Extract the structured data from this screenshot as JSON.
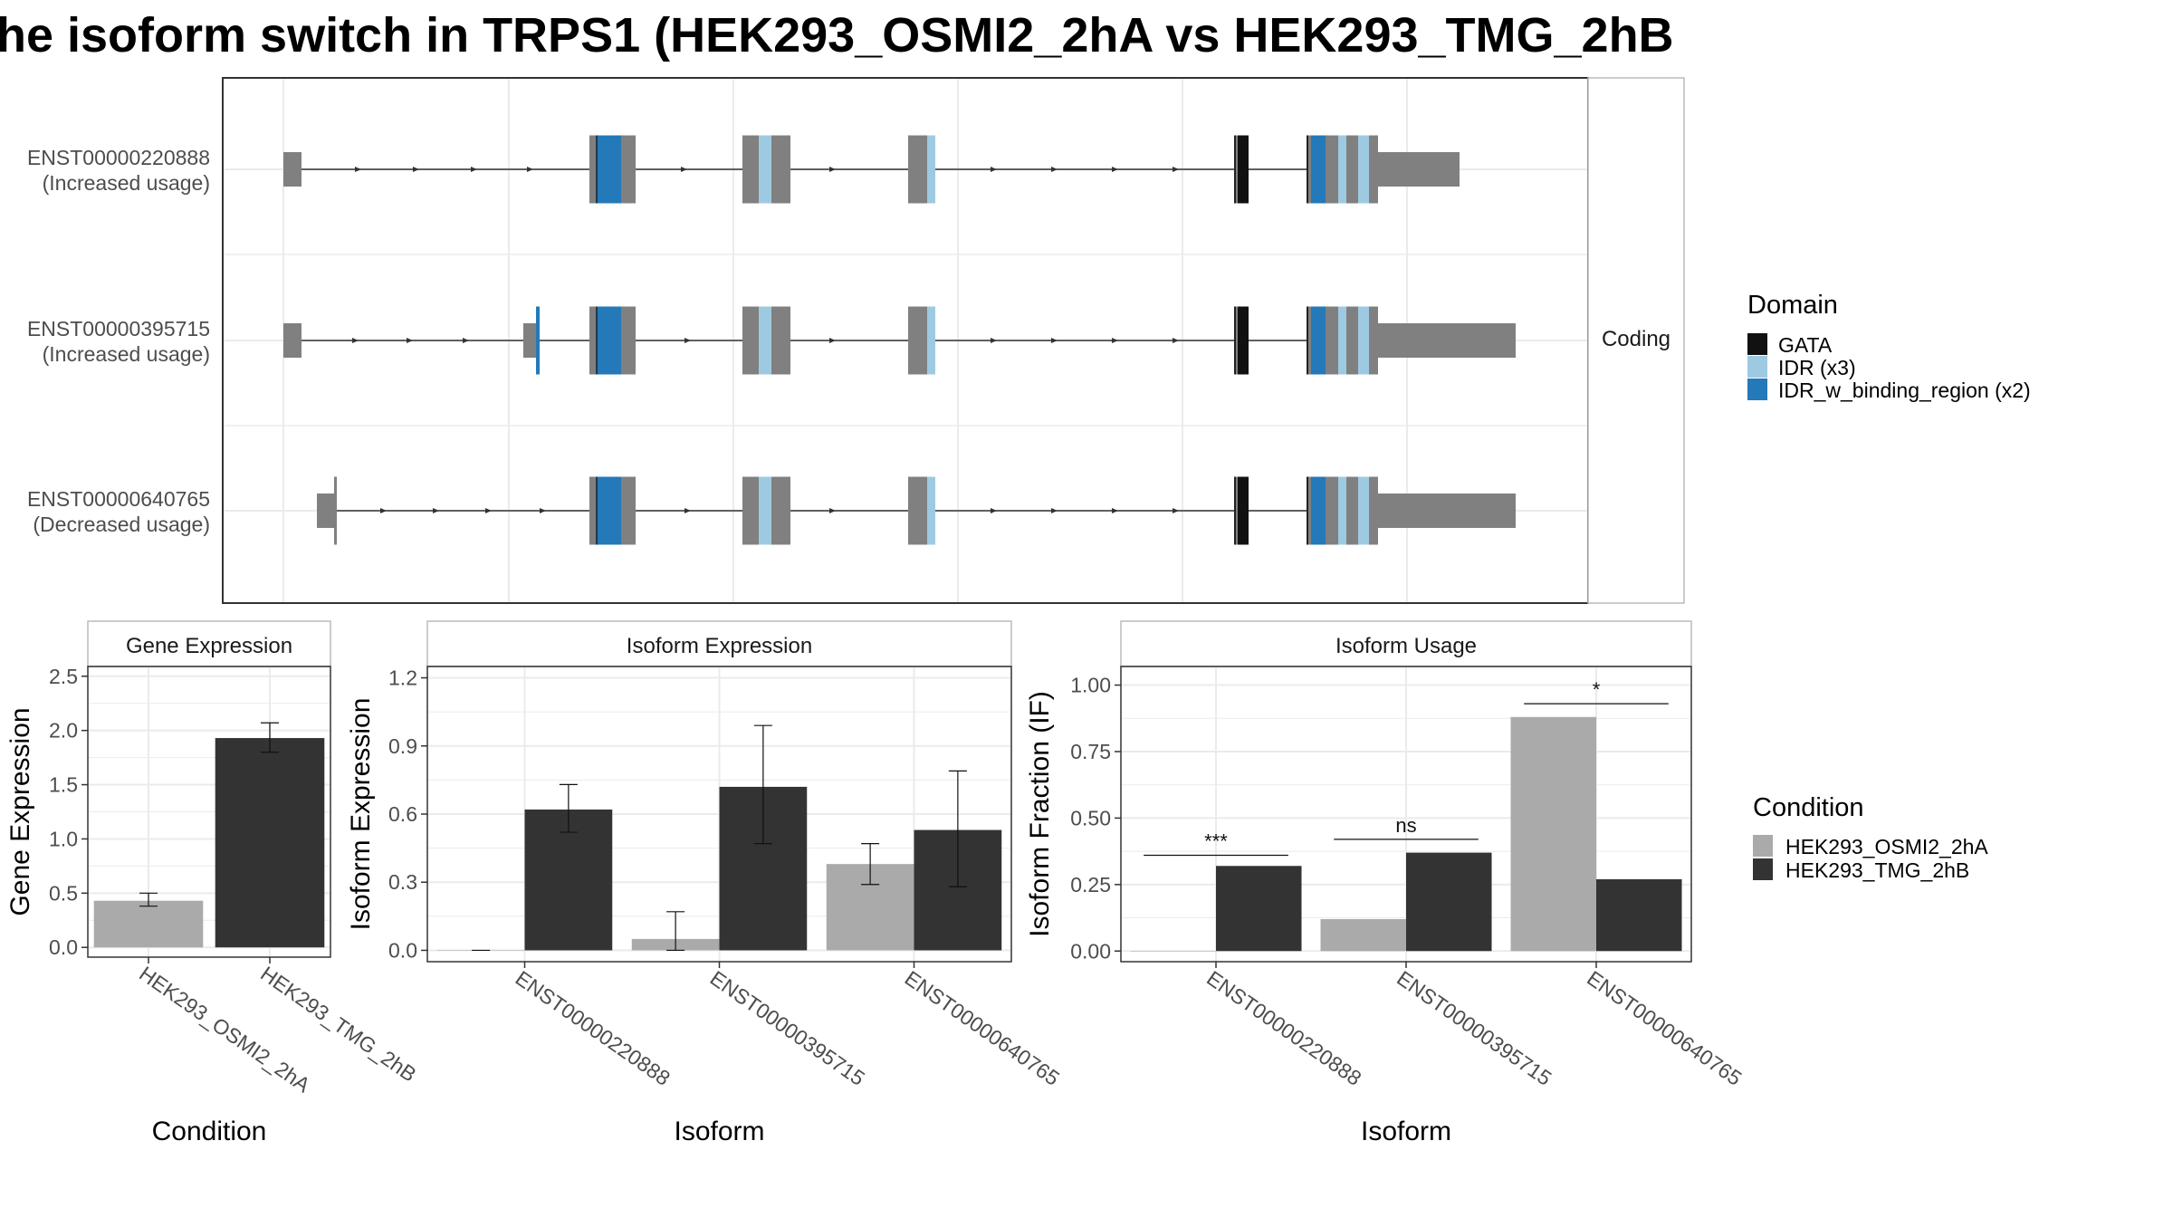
{
  "title": "he isoform switch in TRPS1 (HEK293_OSMI2_2hA vs HEK293_TMG_2hB",
  "colors": {
    "gata": "#111111",
    "idr": "#9ecae1",
    "idr_binding": "#2479b8",
    "exon": "#808080",
    "cond_a": "#aaaaaa",
    "cond_b": "#333333",
    "panel_border": "#333333",
    "strip_border": "#bbbbbb",
    "grid": "#ebebeb",
    "intron": "#333333"
  },
  "structure": {
    "facet_label": "Coding",
    "transcripts": [
      {
        "id": "ENST00000220888",
        "usage": "(Increased usage)"
      },
      {
        "id": "ENST00000395715",
        "usage": "(Increased usage)"
      },
      {
        "id": "ENST00000640765",
        "usage": "(Decreased usage)"
      }
    ],
    "domain_legend": {
      "title": "Domain",
      "items": [
        {
          "label": "GATA",
          "color_key": "gata"
        },
        {
          "label": "IDR (x3)",
          "color_key": "idr"
        },
        {
          "label": "IDR_w_binding_region (x2)",
          "color_key": "idr_binding"
        }
      ]
    }
  },
  "condition_legend": {
    "title": "Condition",
    "items": [
      {
        "label": "HEK293_OSMI2_2hA",
        "color_key": "cond_a"
      },
      {
        "label": "HEK293_TMG_2hB",
        "color_key": "cond_b"
      }
    ]
  },
  "chart_data": [
    {
      "type": "bar",
      "title": "Gene Expression",
      "xlabel": "Condition",
      "ylabel": "Gene Expression",
      "ylim": [
        -0.09,
        2.59
      ],
      "yticks": [
        "0.0",
        "0.5",
        "1.0",
        "1.5",
        "2.0",
        "2.5"
      ],
      "ytick_values": [
        0,
        0.5,
        1.0,
        1.5,
        2.0,
        2.5
      ],
      "categories": [
        "HEK293_OSMI2_2hA",
        "HEK293_TMG_2hB"
      ],
      "values": [
        0.43,
        1.93
      ],
      "errors": [
        [
          0.38,
          0.5
        ],
        [
          1.8,
          2.07
        ]
      ]
    },
    {
      "type": "bar",
      "title": "Isoform Expression",
      "xlabel": "Isoform",
      "ylabel": "Isoform Expression",
      "ylim": [
        -0.05,
        1.25
      ],
      "yticks": [
        "0.0",
        "0.3",
        "0.6",
        "0.9",
        "1.2"
      ],
      "ytick_values": [
        0,
        0.3,
        0.6,
        0.9,
        1.2
      ],
      "categories": [
        "ENST00000220888",
        "ENST00000395715",
        "ENST00000640765"
      ],
      "series": [
        {
          "name": "HEK293_OSMI2_2hA",
          "values": [
            0.0,
            0.05,
            0.38
          ],
          "errors": [
            [
              0.0,
              0.0
            ],
            [
              0.0,
              0.17
            ],
            [
              0.29,
              0.47
            ]
          ]
        },
        {
          "name": "HEK293_TMG_2hB",
          "values": [
            0.62,
            0.72,
            0.53
          ],
          "errors": [
            [
              0.52,
              0.73
            ],
            [
              0.47,
              0.99
            ],
            [
              0.28,
              0.79
            ]
          ]
        }
      ]
    },
    {
      "type": "bar",
      "title": "Isoform Usage",
      "xlabel": "Isoform",
      "ylabel": "Isoform Fraction (IF)",
      "ylim": [
        -0.04,
        1.07
      ],
      "yticks": [
        "0.00",
        "0.25",
        "0.50",
        "0.75",
        "1.00"
      ],
      "ytick_values": [
        0,
        0.25,
        0.5,
        0.75,
        1.0
      ],
      "categories": [
        "ENST00000220888",
        "ENST00000395715",
        "ENST00000640765"
      ],
      "series": [
        {
          "name": "HEK293_OSMI2_2hA",
          "values": [
            0.0,
            0.12,
            0.88
          ]
        },
        {
          "name": "HEK293_TMG_2hB",
          "values": [
            0.32,
            0.37,
            0.27
          ]
        }
      ],
      "significance": [
        {
          "label": "***",
          "y": 0.36
        },
        {
          "label": "ns",
          "y": 0.42
        },
        {
          "label": "*",
          "y": 0.93
        }
      ]
    }
  ]
}
